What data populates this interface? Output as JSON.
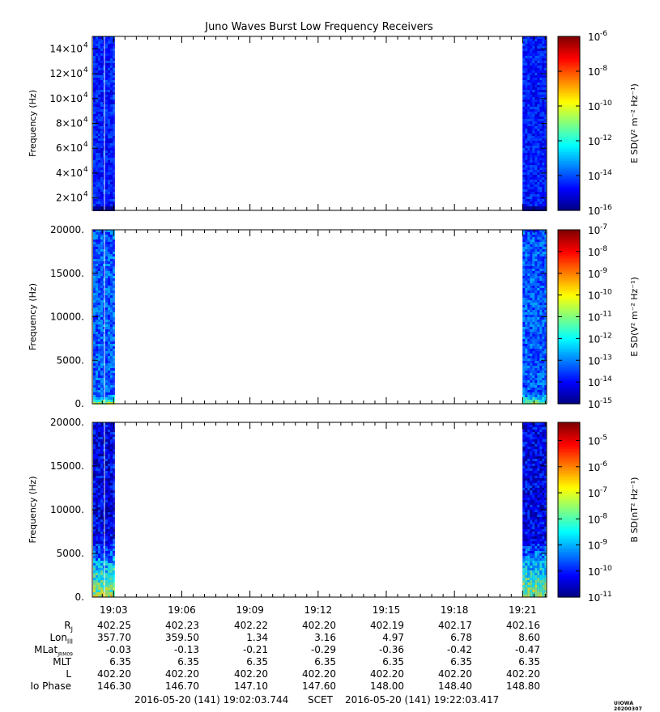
{
  "title": "Juno Waves Burst Low Frequency Receivers",
  "credit": "UIOWA 20200307",
  "chart_data": [
    {
      "type": "heatmap",
      "ylabel": "Frequency (Hz)",
      "ytick_mantissa": [
        "2×10",
        "4×10",
        "6×10",
        "8×10",
        "10×10",
        "12×10",
        "14×10"
      ],
      "ytick_exponent": "4",
      "yticks": [
        20000,
        40000,
        60000,
        80000,
        100000,
        120000,
        140000
      ],
      "ylim": [
        10000,
        150000
      ],
      "colorbar_label": "E SD(V² m⁻² Hz⁻¹)",
      "colorbar_exponents": [
        "-16",
        "-14",
        "-12",
        "-10",
        "-8",
        "-6"
      ],
      "colorbar_range": [
        -16,
        -6
      ],
      "data_intervals": [
        [
          "19:02:03",
          "19:03:00"
        ],
        [
          "19:21:00",
          "19:22:03"
        ]
      ],
      "dominant_level": -14.5
    },
    {
      "type": "heatmap",
      "ylabel": "Frequency (Hz)",
      "ytick_labels": [
        "0.",
        "5000.",
        "10000.",
        "15000.",
        "20000."
      ],
      "yticks": [
        0,
        5000,
        10000,
        15000,
        20000
      ],
      "ylim": [
        0,
        20000
      ],
      "colorbar_label": "E SD(V² m⁻² Hz⁻¹)",
      "colorbar_exponents": [
        "-15",
        "-14",
        "-13",
        "-12",
        "-11",
        "-10",
        "-9",
        "-8",
        "-7"
      ],
      "colorbar_range": [
        -15,
        -7
      ],
      "data_intervals": [
        [
          "19:02:03",
          "19:03:00"
        ],
        [
          "19:21:00",
          "19:22:03"
        ]
      ],
      "dominant_level": -13.3
    },
    {
      "type": "heatmap",
      "ylabel": "Frequency (Hz)",
      "ytick_labels": [
        "0.",
        "5000.",
        "10000.",
        "15000.",
        "20000."
      ],
      "yticks": [
        0,
        5000,
        10000,
        15000,
        20000
      ],
      "ylim": [
        0,
        20000
      ],
      "colorbar_label": "B SD(nT² Hz⁻¹)",
      "colorbar_exponents": [
        "-11",
        "-10",
        "-9",
        "-8",
        "-7",
        "-6",
        "-5"
      ],
      "colorbar_range": [
        -11,
        -4.3
      ],
      "data_intervals": [
        [
          "19:02:03",
          "19:03:00"
        ],
        [
          "19:21:00",
          "19:22:03"
        ]
      ],
      "dominant_level": -10.3
    }
  ],
  "time_axis": {
    "start_label": "2016-05-20 (141) 19:02:03.744",
    "scet_label": "SCET",
    "end_label": "2016-05-20 (141) 19:22:03.417",
    "tick_times": [
      "19:03",
      "19:06",
      "19:09",
      "19:12",
      "19:15",
      "19:18",
      "19:21"
    ],
    "range_seconds": [
      123.744,
      1323.417
    ]
  },
  "ephemeris": {
    "rows": [
      {
        "label": "R",
        "sub": "J",
        "values": [
          "402.25",
          "402.23",
          "402.22",
          "402.20",
          "402.19",
          "402.17",
          "402.16"
        ]
      },
      {
        "label": "Lon",
        "sub": "III",
        "values": [
          "357.70",
          "359.50",
          "1.34",
          "3.16",
          "4.97",
          "6.78",
          "8.60"
        ]
      },
      {
        "label": "MLat",
        "sub": "JRM09",
        "values": [
          "-0.03",
          "-0.13",
          "-0.21",
          "-0.29",
          "-0.36",
          "-0.42",
          "-0.47"
        ]
      },
      {
        "label": "MLT",
        "sub": "",
        "values": [
          "6.35",
          "6.35",
          "6.35",
          "6.35",
          "6.35",
          "6.35",
          "6.35"
        ]
      },
      {
        "label": "L",
        "sub": "",
        "values": [
          "402.20",
          "402.20",
          "402.20",
          "402.20",
          "402.20",
          "402.20",
          "402.20"
        ]
      },
      {
        "label": "Io Phase",
        "sub": "",
        "values": [
          "146.30",
          "146.70",
          "147.10",
          "147.60",
          "148.00",
          "148.40",
          "148.80"
        ]
      }
    ]
  }
}
